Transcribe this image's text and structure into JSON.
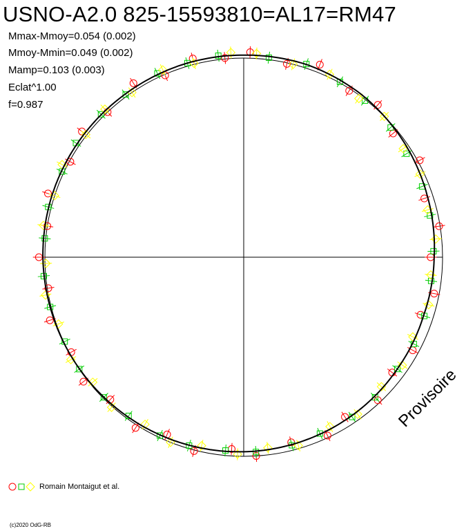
{
  "header": {
    "title": "USNO-A2.0 825-15593810=AL17=RM47",
    "stats": [
      "Mmax-Mmoy=0.054 (0.002)",
      "Mmoy-Mmin=0.049 (0.002)",
      "Mamp=0.103 (0.003)",
      "Eclat^1.00",
      "f=0.987"
    ]
  },
  "watermark": "Provisoire",
  "legend": {
    "label": "Romain Montaigut et al.",
    "markers": [
      "circle",
      "square",
      "diamond"
    ]
  },
  "footer": {
    "copyright": "(c)2020 OdG-RB"
  },
  "colors": {
    "circle_series": "#ff0000",
    "square_series": "#00cc00",
    "diamond_series": "#ffff00",
    "model_curve": "#000000",
    "reference_circle": "#000000",
    "axes": "#000000"
  },
  "chart_data": {
    "type": "scatter",
    "projection": "polar",
    "reference_radius": 1.0,
    "axes": {
      "x_range": [
        -1.05,
        1.05
      ],
      "y_range": [
        -1.05,
        1.05
      ],
      "crosshair": true
    },
    "grid": false,
    "legend_position": "bottom-left",
    "model_curve": {
      "phase": [
        0.0,
        0.05,
        0.1,
        0.15,
        0.2,
        0.25,
        0.3,
        0.35,
        0.4,
        0.45,
        0.5,
        0.55,
        0.6,
        0.65,
        0.7,
        0.75,
        0.8,
        0.85,
        0.9,
        0.95
      ],
      "relative_radius": [
        1.015,
        1.018,
        1.009,
        0.992,
        0.973,
        0.958,
        0.951,
        0.955,
        0.963,
        0.97,
        0.977,
        0.984,
        0.991,
        0.998,
        1.004,
        1.01,
        1.013,
        1.013,
        1.013,
        1.015
      ]
    },
    "series": [
      {
        "marker": "circle",
        "phase": [
          0.005,
          0.035,
          0.06,
          0.09,
          0.115,
          0.14,
          0.17,
          0.2,
          0.225,
          0.25,
          0.28,
          0.3,
          0.33,
          0.355,
          0.38,
          0.41,
          0.43,
          0.46,
          0.49,
          0.51,
          0.54,
          0.565,
          0.59,
          0.62,
          0.645,
          0.67,
          0.7,
          0.725,
          0.75,
          0.775,
          0.8,
          0.83,
          0.855,
          0.88,
          0.91,
          0.935,
          0.96,
          0.985
        ],
        "relative_radius": [
          1.03,
          0.995,
          1.04,
          0.99,
          1.02,
          0.975,
          1.01,
          0.955,
          0.995,
          0.94,
          0.975,
          0.935,
          0.97,
          0.945,
          0.985,
          0.95,
          0.99,
          0.96,
          1.0,
          0.965,
          1.005,
          0.97,
          1.015,
          0.98,
          1.02,
          0.99,
          1.025,
          0.995,
          1.03,
          1.0,
          1.035,
          0.995,
          1.03,
          1.0,
          1.035,
          0.995,
          1.03,
          1.005
        ]
      },
      {
        "marker": "square",
        "phase": [
          0.02,
          0.05,
          0.08,
          0.105,
          0.135,
          0.16,
          0.19,
          0.215,
          0.245,
          0.27,
          0.3,
          0.325,
          0.35,
          0.38,
          0.405,
          0.435,
          0.46,
          0.49,
          0.515,
          0.545,
          0.57,
          0.6,
          0.625,
          0.655,
          0.68,
          0.71,
          0.735,
          0.765,
          0.79,
          0.82,
          0.845,
          0.875,
          0.9,
          0.93,
          0.955,
          0.98
        ],
        "relative_radius": [
          1.01,
          1.02,
          1.005,
          0.995,
          0.985,
          0.97,
          0.965,
          0.96,
          0.955,
          0.95,
          0.955,
          0.96,
          0.955,
          0.965,
          0.97,
          0.965,
          0.975,
          0.98,
          0.975,
          0.985,
          0.99,
          0.985,
          0.995,
          1.0,
          0.995,
          1.005,
          1.01,
          1.005,
          1.015,
          1.01,
          1.02,
          1.015,
          1.01,
          1.02,
          1.015,
          1.02
        ]
      },
      {
        "marker": "diamond",
        "phase": [
          0.01,
          0.04,
          0.07,
          0.1,
          0.125,
          0.155,
          0.18,
          0.21,
          0.235,
          0.265,
          0.29,
          0.32,
          0.345,
          0.37,
          0.4,
          0.425,
          0.455,
          0.48,
          0.505,
          0.535,
          0.56,
          0.585,
          0.615,
          0.64,
          0.665,
          0.695,
          0.72,
          0.745,
          0.775,
          0.8,
          0.825,
          0.855,
          0.88,
          0.905,
          0.935,
          0.96,
          0.99
        ],
        "relative_radius": [
          1.025,
          1.0,
          1.015,
          0.985,
          1.0,
          0.97,
          0.98,
          0.955,
          0.97,
          0.945,
          0.96,
          0.94,
          0.965,
          0.95,
          0.975,
          0.955,
          0.985,
          0.965,
          0.99,
          0.97,
          1.0,
          0.975,
          1.005,
          0.985,
          1.01,
          0.99,
          1.015,
          0.995,
          1.02,
          1.0,
          1.025,
          1.005,
          1.02,
          1.0,
          1.025,
          1.005,
          1.03
        ]
      }
    ]
  }
}
